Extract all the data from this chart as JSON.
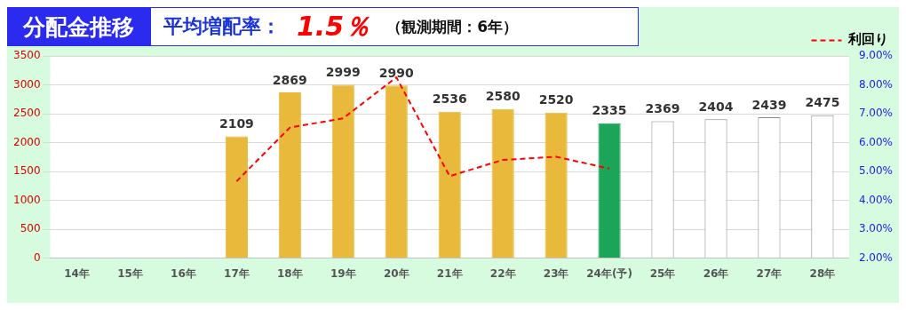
{
  "chart_data": {
    "type": "bar",
    "title": "分配金推移",
    "annotations": [
      "平均増配率：",
      "1.5％",
      "（観測期間：6年）"
    ],
    "categories": [
      "14年",
      "15年",
      "16年",
      "17年",
      "18年",
      "19年",
      "20年",
      "21年",
      "22年",
      "23年",
      "24年(予)",
      "25年",
      "26年",
      "27年",
      "28年"
    ],
    "series": [
      {
        "colors": [
          "#e8b93a",
          "#e8b93a",
          "#e8b93a",
          "#e8b93a",
          "#e8b93a",
          "#e8b93a",
          "#e8b93a",
          "#e8b93a",
          "#e8b93a",
          "#e8b93a",
          "#1aa558",
          "#ffffff",
          "#ffffff",
          "#ffffff",
          "#ffffff"
        ],
        "values": [
          null,
          null,
          null,
          2109,
          2869,
          2999,
          2990,
          2536,
          2580,
          2520,
          2335,
          2369,
          2404,
          2439,
          2475
        ],
        "value_labels": [
          null,
          null,
          null,
          "2109",
          "2869",
          "2999",
          "2990",
          "2536",
          "2580",
          "2520",
          "2335",
          "2369",
          "2404",
          "2439",
          "2475"
        ]
      },
      {
        "type": "line",
        "name": "利回り",
        "color": "#ff0000",
        "axis": "y2",
        "line_style": "dashed",
        "marker": "none",
        "values": [
          null,
          null,
          null,
          4.66,
          6.52,
          6.84,
          8.26,
          4.84,
          5.4,
          5.51,
          5.1,
          null,
          null,
          null,
          null
        ]
      }
    ],
    "ylim": [
      0,
      3500
    ],
    "yticks": [
      0,
      500,
      1000,
      1500,
      2000,
      2500,
      3000,
      3500
    ],
    "y2lim": [
      2,
      9
    ],
    "y2ticks": [
      {
        "value": 2,
        "label": "2.00%"
      },
      {
        "value": 3,
        "label": "3.00%"
      },
      {
        "value": 4,
        "label": "4.00%"
      },
      {
        "value": 5,
        "label": "5.00%"
      },
      {
        "value": 6,
        "label": "6.00%"
      },
      {
        "value": 7,
        "label": "7.00%"
      },
      {
        "value": 8,
        "label": "8.00%"
      },
      {
        "value": 9,
        "label": "9.00%"
      }
    ],
    "grid": "y",
    "legend": "top right"
  }
}
